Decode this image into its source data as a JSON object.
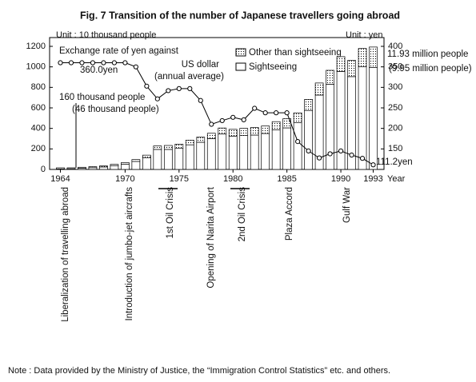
{
  "chart_data": {
    "type": "bar+line",
    "title": "Fig. 7 Transition of the number of Japanese travellers going abroad",
    "y_unit": "Unit : 10 thousand people",
    "y2_unit": "Unit : yen",
    "x_label": "Year",
    "x": [
      1964,
      1965,
      1966,
      1967,
      1968,
      1969,
      1970,
      1971,
      1972,
      1973,
      1974,
      1975,
      1976,
      1977,
      1978,
      1979,
      1980,
      1981,
      1982,
      1983,
      1984,
      1985,
      1986,
      1987,
      1988,
      1989,
      1990,
      1991,
      1992,
      1993
    ],
    "xlim": [
      1963,
      1994
    ],
    "xticks": [
      1964,
      1970,
      1975,
      1980,
      1985,
      1990,
      1993
    ],
    "ylim": [
      0,
      1200
    ],
    "yticks": [
      0,
      200,
      400,
      600,
      800,
      1000,
      1200
    ],
    "y2lim": [
      100,
      400
    ],
    "y2ticks": [
      150,
      200,
      250,
      300,
      350,
      400
    ],
    "series": [
      {
        "name": "Sightseeing",
        "color": "#ffffff",
        "values": [
          4.6,
          7,
          12,
          17,
          24,
          37,
          52,
          78,
          115,
          195,
          195,
          205,
          240,
          265,
          300,
          345,
          325,
          330,
          335,
          350,
          385,
          405,
          455,
          575,
          725,
          830,
          955,
          905,
          1000,
          995
        ]
      },
      {
        "name": "Other than sightseeing",
        "color": "#000000",
        "values": [
          11.4,
          8.9,
          9.2,
          9.8,
          10.4,
          12.3,
          14.3,
          18.1,
          24.2,
          33.9,
          38.6,
          41.6,
          45.3,
          50.1,
          52.6,
          58.8,
          65.9,
          70.7,
          73.6,
          73.3,
          80.9,
          89.8,
          96.6,
          107.9,
          117.7,
          136.3,
          144.7,
          158.4,
          179.1,
          198.3
        ]
      },
      {
        "name": "Exchange rate of yen against US dollar (annual average)",
        "color": "#000000",
        "axis": "y2",
        "values": [
          360,
          360,
          360,
          360,
          360,
          360,
          360,
          350,
          303,
          272,
          292,
          297,
          297,
          268,
          210,
          219,
          227,
          221,
          249,
          238,
          238,
          238,
          168,
          145,
          128,
          138,
          145,
          135,
          127,
          111.2
        ]
      }
    ],
    "exchange_label_lines": [
      "Exchange rate of yen against",
      "US dollar",
      "(annual average)"
    ],
    "annotations": [
      "360.0yen",
      "160 thousand people",
      "(46 thousand people)",
      "11.93 million people",
      "(9.95 million people)",
      "111.2yen"
    ],
    "events": [
      "Liberalization of travelling abroad",
      "Introduction of jumbo-jet aircrafts",
      "1st Oil Crisis",
      "Opening of Narita Airport",
      "2nd Oil Crisis",
      "Plaza Accord",
      "Gulf War"
    ],
    "legend": "top-right",
    "note": "Note :  Data provided by the Ministry of Justice, the “Immigration Control Statistics” etc. and others."
  }
}
